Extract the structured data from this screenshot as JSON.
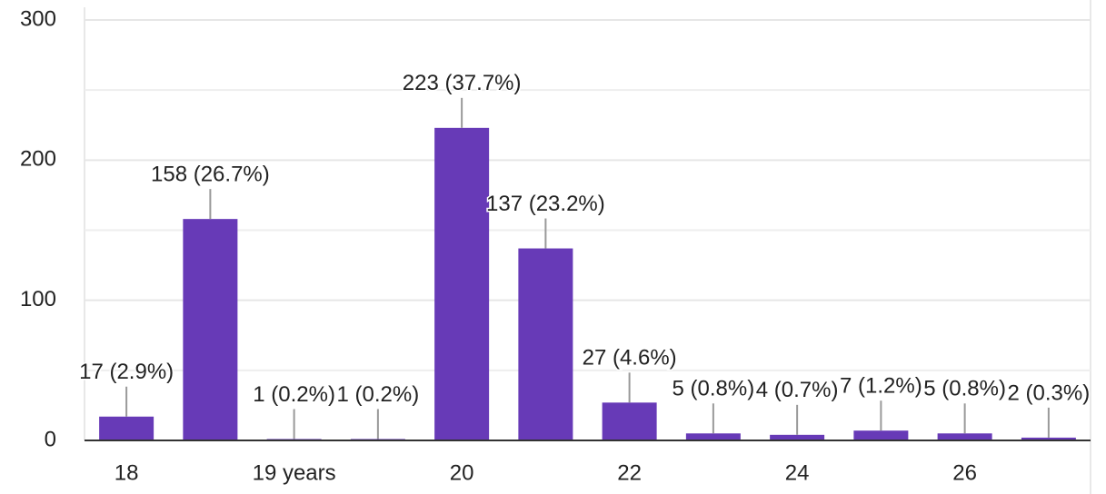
{
  "chart_data": {
    "type": "bar",
    "categories": [
      "18",
      null,
      "19 years",
      null,
      "20",
      null,
      "22",
      null,
      "24",
      null,
      "26",
      null
    ],
    "values": [
      17,
      158,
      1,
      1,
      223,
      137,
      27,
      5,
      4,
      7,
      5,
      2
    ],
    "value_labels": [
      "17 (2.9%)",
      "158 (26.7%)",
      "1 (0.2%)",
      "1 (0.2%)",
      "223 (37.7%)",
      "137 (23.2%)",
      "27 (4.6%)",
      "5 (0.8%)",
      "4 (0.7%)",
      "7 (1.2%)",
      "5 (0.8%)",
      "2 (0.3%)"
    ],
    "color": "#673ab7",
    "ylim": [
      0,
      300
    ],
    "yticks": [
      0,
      100,
      200,
      300
    ],
    "minor_yticks": [
      50,
      150,
      250
    ],
    "grid": true
  }
}
